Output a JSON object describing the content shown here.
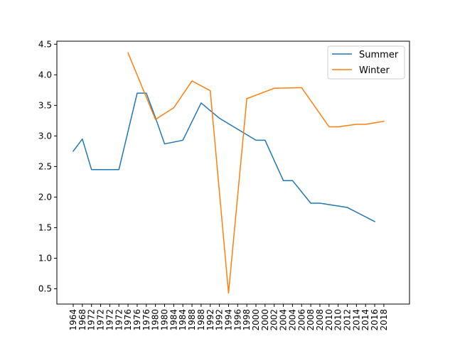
{
  "chart_data": {
    "type": "line",
    "title": "",
    "xlabel": "",
    "ylabel": "",
    "categories": [
      "1964",
      "1968",
      "1972",
      "1972",
      "1972",
      "1972",
      "1976",
      "1976",
      "1976",
      "1980",
      "1980",
      "1984",
      "1984",
      "1988",
      "1988",
      "1992",
      "1992",
      "1994",
      "1996",
      "1998",
      "2000",
      "2000",
      "2002",
      "2004",
      "2004",
      "2006",
      "2008",
      "2008",
      "2010",
      "2010",
      "2012",
      "2014",
      "2014",
      "2016",
      "2018"
    ],
    "ylim": [
      0.25,
      4.55
    ],
    "yticks": [
      0.5,
      1.0,
      1.5,
      2.0,
      2.5,
      3.0,
      3.5,
      4.0,
      4.5
    ],
    "ytick_labels": [
      "0.5",
      "1.0",
      "1.5",
      "2.0",
      "2.5",
      "3.0",
      "3.5",
      "4.0",
      "4.5"
    ],
    "grid": false,
    "legend_position": "top-right",
    "series": [
      {
        "name": "Summer",
        "color": "#1f77b4",
        "points": [
          [
            0,
            2.75
          ],
          [
            1,
            2.95
          ],
          [
            2,
            2.45
          ],
          [
            3,
            2.45
          ],
          [
            4,
            2.45
          ],
          [
            5,
            2.45
          ],
          [
            7,
            3.7
          ],
          [
            8,
            3.7
          ],
          [
            9,
            3.3
          ],
          [
            10,
            2.87
          ],
          [
            12,
            2.93
          ],
          [
            14,
            3.54
          ],
          [
            16,
            3.29
          ],
          [
            20,
            2.93
          ],
          [
            21,
            2.93
          ],
          [
            23,
            2.27
          ],
          [
            24,
            2.27
          ],
          [
            26,
            1.9
          ],
          [
            27,
            1.9
          ],
          [
            30,
            1.83
          ],
          [
            33,
            1.6
          ]
        ]
      },
      {
        "name": "Winter",
        "color": "#ff7f0e",
        "points": [
          [
            6,
            4.36
          ],
          [
            9,
            3.27
          ],
          [
            11,
            3.46
          ],
          [
            13,
            3.9
          ],
          [
            15,
            3.74
          ],
          [
            17,
            0.43
          ],
          [
            19,
            3.61
          ],
          [
            22,
            3.78
          ],
          [
            25,
            3.79
          ],
          [
            28,
            3.15
          ],
          [
            29,
            3.15
          ],
          [
            31,
            3.19
          ],
          [
            32,
            3.19
          ],
          [
            34,
            3.24
          ]
        ]
      }
    ]
  }
}
